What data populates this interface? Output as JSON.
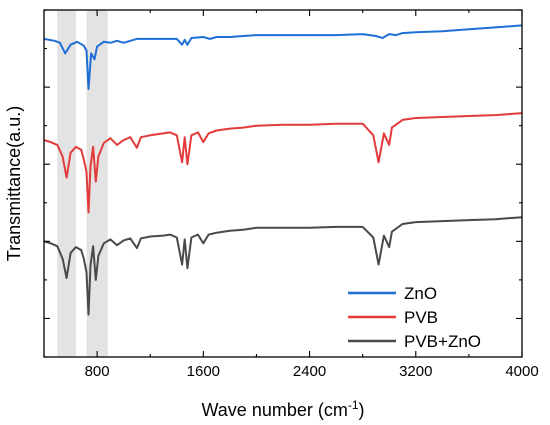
{
  "chart_data": {
    "type": "line",
    "xlabel_main": "Wave number (cm",
    "xlabel_sup": "-1",
    "xlabel_tail": ")",
    "ylabel": "Transmittance(a.u.)",
    "xlim": [
      400,
      4000
    ],
    "ylim": [
      0,
      3.6
    ],
    "x_ticks": [
      800,
      1600,
      2400,
      3200,
      4000
    ],
    "y_ticks_labeled": false,
    "grid": false,
    "legend_position": "bottom-right",
    "highlight_bands": [
      [
        500,
        640
      ],
      [
        720,
        880
      ]
    ],
    "highlight_color": "#e3e3e3",
    "series": [
      {
        "name": "ZnO",
        "color": "#1f6fd6",
        "points": [
          [
            400,
            3.3
          ],
          [
            480,
            3.28
          ],
          [
            520,
            3.26
          ],
          [
            560,
            3.15
          ],
          [
            600,
            3.24
          ],
          [
            650,
            3.27
          ],
          [
            700,
            3.23
          ],
          [
            720,
            3.18
          ],
          [
            735,
            2.78
          ],
          [
            755,
            3.15
          ],
          [
            780,
            3.09
          ],
          [
            800,
            3.22
          ],
          [
            850,
            3.27
          ],
          [
            900,
            3.26
          ],
          [
            950,
            3.28
          ],
          [
            1000,
            3.26
          ],
          [
            1050,
            3.28
          ],
          [
            1100,
            3.3
          ],
          [
            1200,
            3.3
          ],
          [
            1300,
            3.3
          ],
          [
            1400,
            3.3
          ],
          [
            1440,
            3.24
          ],
          [
            1460,
            3.29
          ],
          [
            1480,
            3.24
          ],
          [
            1510,
            3.31
          ],
          [
            1600,
            3.32
          ],
          [
            1650,
            3.3
          ],
          [
            1700,
            3.32
          ],
          [
            1800,
            3.32
          ],
          [
            1900,
            3.33
          ],
          [
            2000,
            3.34
          ],
          [
            2200,
            3.34
          ],
          [
            2400,
            3.34
          ],
          [
            2600,
            3.34
          ],
          [
            2800,
            3.35
          ],
          [
            2900,
            3.33
          ],
          [
            2950,
            3.31
          ],
          [
            3000,
            3.35
          ],
          [
            3050,
            3.34
          ],
          [
            3100,
            3.36
          ],
          [
            3200,
            3.37
          ],
          [
            3400,
            3.38
          ],
          [
            3600,
            3.4
          ],
          [
            3800,
            3.42
          ],
          [
            4000,
            3.44
          ]
        ]
      },
      {
        "name": "PVB",
        "color": "#e33b3b",
        "points": [
          [
            400,
            2.25
          ],
          [
            450,
            2.23
          ],
          [
            500,
            2.2
          ],
          [
            540,
            2.08
          ],
          [
            570,
            1.86
          ],
          [
            600,
            2.12
          ],
          [
            640,
            2.18
          ],
          [
            680,
            2.15
          ],
          [
            700,
            2.05
          ],
          [
            720,
            1.92
          ],
          [
            735,
            1.5
          ],
          [
            750,
            1.98
          ],
          [
            770,
            2.18
          ],
          [
            790,
            1.82
          ],
          [
            810,
            2.08
          ],
          [
            850,
            2.22
          ],
          [
            900,
            2.27
          ],
          [
            950,
            2.2
          ],
          [
            1000,
            2.25
          ],
          [
            1050,
            2.28
          ],
          [
            1100,
            2.17
          ],
          [
            1130,
            2.28
          ],
          [
            1200,
            2.3
          ],
          [
            1300,
            2.32
          ],
          [
            1350,
            2.33
          ],
          [
            1400,
            2.3
          ],
          [
            1440,
            2.02
          ],
          [
            1460,
            2.28
          ],
          [
            1480,
            2.0
          ],
          [
            1510,
            2.3
          ],
          [
            1560,
            2.33
          ],
          [
            1600,
            2.23
          ],
          [
            1640,
            2.32
          ],
          [
            1700,
            2.35
          ],
          [
            1800,
            2.37
          ],
          [
            1900,
            2.38
          ],
          [
            2000,
            2.4
          ],
          [
            2200,
            2.41
          ],
          [
            2400,
            2.41
          ],
          [
            2600,
            2.42
          ],
          [
            2800,
            2.42
          ],
          [
            2880,
            2.3
          ],
          [
            2920,
            2.02
          ],
          [
            2960,
            2.32
          ],
          [
            3000,
            2.2
          ],
          [
            3020,
            2.38
          ],
          [
            3100,
            2.46
          ],
          [
            3200,
            2.48
          ],
          [
            3400,
            2.49
          ],
          [
            3600,
            2.5
          ],
          [
            3800,
            2.51
          ],
          [
            4000,
            2.53
          ]
        ]
      },
      {
        "name": "PVB+ZnO",
        "color": "#4a4a4a",
        "points": [
          [
            400,
            1.2
          ],
          [
            450,
            1.18
          ],
          [
            500,
            1.15
          ],
          [
            540,
            1.02
          ],
          [
            570,
            0.82
          ],
          [
            600,
            1.08
          ],
          [
            640,
            1.14
          ],
          [
            680,
            1.11
          ],
          [
            700,
            1.02
          ],
          [
            720,
            0.88
          ],
          [
            735,
            0.44
          ],
          [
            750,
            0.95
          ],
          [
            770,
            1.15
          ],
          [
            790,
            0.8
          ],
          [
            810,
            1.05
          ],
          [
            850,
            1.18
          ],
          [
            900,
            1.22
          ],
          [
            950,
            1.16
          ],
          [
            1000,
            1.21
          ],
          [
            1050,
            1.23
          ],
          [
            1100,
            1.13
          ],
          [
            1130,
            1.23
          ],
          [
            1200,
            1.25
          ],
          [
            1300,
            1.26
          ],
          [
            1350,
            1.27
          ],
          [
            1400,
            1.24
          ],
          [
            1440,
            0.96
          ],
          [
            1460,
            1.22
          ],
          [
            1480,
            0.92
          ],
          [
            1510,
            1.24
          ],
          [
            1560,
            1.27
          ],
          [
            1600,
            1.18
          ],
          [
            1640,
            1.27
          ],
          [
            1700,
            1.29
          ],
          [
            1800,
            1.31
          ],
          [
            1900,
            1.32
          ],
          [
            2000,
            1.34
          ],
          [
            2200,
            1.34
          ],
          [
            2400,
            1.34
          ],
          [
            2600,
            1.35
          ],
          [
            2800,
            1.35
          ],
          [
            2880,
            1.24
          ],
          [
            2920,
            0.96
          ],
          [
            2960,
            1.26
          ],
          [
            3000,
            1.14
          ],
          [
            3020,
            1.3
          ],
          [
            3100,
            1.38
          ],
          [
            3200,
            1.4
          ],
          [
            3400,
            1.41
          ],
          [
            3600,
            1.42
          ],
          [
            3800,
            1.43
          ],
          [
            4000,
            1.45
          ]
        ]
      }
    ]
  }
}
